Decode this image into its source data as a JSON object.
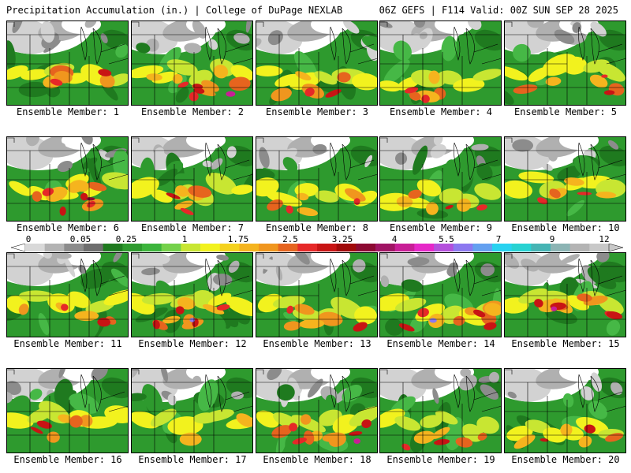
{
  "header": {
    "left": "Precipitation Accumulation (in.) | College of DuPage NEXLAB",
    "right": "06Z GEFS | F114 Valid: 00Z SUN SEP 28 2025"
  },
  "panels": [
    {
      "label": "Ensemble Member: 1",
      "intensity": "moderate"
    },
    {
      "label": "Ensemble Member: 2",
      "intensity": "high"
    },
    {
      "label": "Ensemble Member: 3",
      "intensity": "moderate"
    },
    {
      "label": "Ensemble Member: 4",
      "intensity": "moderate"
    },
    {
      "label": "Ensemble Member: 5",
      "intensity": "moderate"
    },
    {
      "label": "Ensemble Member: 6",
      "intensity": "high"
    },
    {
      "label": "Ensemble Member: 7",
      "intensity": "moderate"
    },
    {
      "label": "Ensemble Member: 8",
      "intensity": "moderate"
    },
    {
      "label": "Ensemble Member: 9",
      "intensity": "moderate"
    },
    {
      "label": "Ensemble Member: 10",
      "intensity": "moderate"
    },
    {
      "label": "Ensemble Member: 11",
      "intensity": "moderate"
    },
    {
      "label": "Ensemble Member: 12",
      "intensity": "high"
    },
    {
      "label": "Ensemble Member: 13",
      "intensity": "moderate"
    },
    {
      "label": "Ensemble Member: 14",
      "intensity": "high"
    },
    {
      "label": "Ensemble Member: 15",
      "intensity": "high"
    },
    {
      "label": "Ensemble Member: 16",
      "intensity": "moderate"
    },
    {
      "label": "Ensemble Member: 17",
      "intensity": "low"
    },
    {
      "label": "Ensemble Member: 18",
      "intensity": "high"
    },
    {
      "label": "Ensemble Member: 19",
      "intensity": "moderate"
    },
    {
      "label": "Ensemble Member: 20",
      "intensity": "moderate"
    }
  ],
  "colorbar": {
    "tick_labels": [
      "0",
      "0.05",
      "0.25",
      "1",
      "1.75",
      "2.5",
      "3.25",
      "4",
      "5.5",
      "7",
      "9",
      "12"
    ],
    "colors": [
      "#d9d9d9",
      "#b3b3b3",
      "#8c8c8c",
      "#6e6e6e",
      "#1f7a1f",
      "#2e9a2e",
      "#3cb43c",
      "#74d14a",
      "#c8e632",
      "#f2f21e",
      "#f5d21e",
      "#f5b41e",
      "#f0961e",
      "#e6641e",
      "#e62828",
      "#c81414",
      "#a00a0a",
      "#8c0a32",
      "#a01464",
      "#c81e96",
      "#e628c8",
      "#b450dc",
      "#8c78f0",
      "#64a0f0",
      "#28d2f0",
      "#28d2d2",
      "#46b4b4",
      "#8cb4b4",
      "#b4b4b4",
      "#c8c8c8"
    ]
  },
  "map_colors": {
    "none": "#ffffff",
    "trace": [
      "#d2d2d2",
      "#b0b0b0",
      "#8c8c8c"
    ],
    "green": [
      "#1f7a1f",
      "#2e9a2e",
      "#46b846"
    ],
    "yellow": [
      "#c8e632",
      "#f2f21e"
    ],
    "orange": [
      "#f5b41e",
      "#f0961e",
      "#e6641e"
    ],
    "red": [
      "#e62828",
      "#c81414"
    ],
    "purple": [
      "#8c0a32",
      "#c81e96",
      "#8c78f0"
    ],
    "lines": "#000000"
  }
}
